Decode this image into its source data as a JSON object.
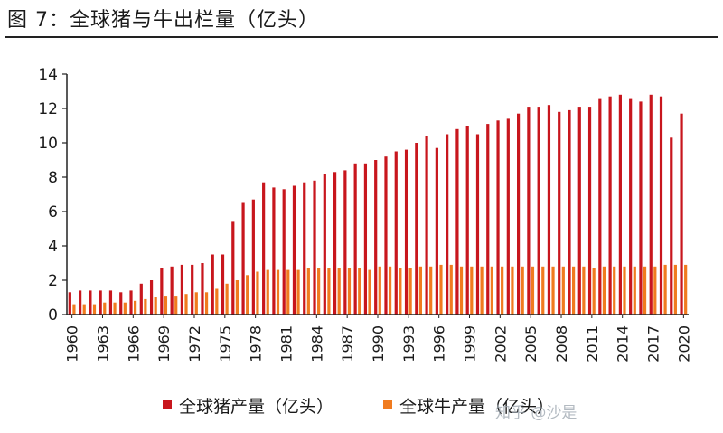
{
  "title": "图 7：全球猪与牛出栏量（亿头）",
  "watermark": "知乎 @沙是",
  "colors": {
    "pig": "#c8161d",
    "cattle": "#f07b1f",
    "axis": "#222222"
  },
  "chart_data": {
    "type": "bar",
    "title": "全球猪与牛出栏量（亿头）",
    "ylim": [
      0,
      14
    ],
    "yticks": [
      0,
      2,
      4,
      6,
      8,
      10,
      12,
      14
    ],
    "grid": false,
    "legend_position": "bottom",
    "categories": [
      1960,
      1961,
      1962,
      1963,
      1964,
      1965,
      1966,
      1967,
      1968,
      1969,
      1970,
      1971,
      1972,
      1973,
      1974,
      1975,
      1976,
      1977,
      1978,
      1979,
      1980,
      1981,
      1982,
      1983,
      1984,
      1985,
      1986,
      1987,
      1988,
      1989,
      1990,
      1991,
      1992,
      1993,
      1994,
      1995,
      1996,
      1997,
      1998,
      1999,
      2000,
      2001,
      2002,
      2003,
      2004,
      2005,
      2006,
      2007,
      2008,
      2009,
      2010,
      2011,
      2012,
      2013,
      2014,
      2015,
      2016,
      2017,
      2018,
      2019,
      2020
    ],
    "xtick_labels": [
      "1960",
      "1963",
      "1966",
      "1969",
      "1972",
      "1975",
      "1978",
      "1981",
      "1984",
      "1987",
      "1990",
      "1993",
      "1996",
      "1999",
      "2002",
      "2005",
      "2008",
      "2011",
      "2014",
      "2017",
      "2020"
    ],
    "series": [
      {
        "name": "全球猪产量（亿头）",
        "color": "#c8161d",
        "values": [
          1.3,
          1.4,
          1.4,
          1.4,
          1.4,
          1.3,
          1.4,
          1.8,
          2.0,
          2.7,
          2.8,
          2.9,
          2.9,
          3.0,
          3.5,
          3.5,
          5.4,
          6.5,
          6.7,
          7.7,
          7.4,
          7.3,
          7.5,
          7.7,
          7.8,
          8.2,
          8.3,
          8.4,
          8.8,
          8.8,
          9.0,
          9.2,
          9.5,
          9.6,
          10.0,
          10.4,
          9.7,
          10.5,
          10.8,
          11.0,
          10.5,
          11.1,
          11.3,
          11.4,
          11.7,
          12.1,
          12.1,
          12.2,
          11.8,
          11.9,
          12.1,
          12.1,
          12.6,
          12.7,
          12.8,
          12.6,
          12.4,
          12.8,
          12.7,
          10.3,
          11.7
        ]
      },
      {
        "name": "全球牛产量（亿头）",
        "color": "#f07b1f",
        "values": [
          0.6,
          0.6,
          0.6,
          0.7,
          0.7,
          0.7,
          0.8,
          0.9,
          1.0,
          1.1,
          1.1,
          1.2,
          1.3,
          1.3,
          1.5,
          1.8,
          2.0,
          2.3,
          2.5,
          2.6,
          2.6,
          2.6,
          2.6,
          2.7,
          2.7,
          2.7,
          2.7,
          2.7,
          2.7,
          2.6,
          2.8,
          2.8,
          2.7,
          2.7,
          2.8,
          2.8,
          2.9,
          2.9,
          2.8,
          2.8,
          2.8,
          2.8,
          2.8,
          2.8,
          2.8,
          2.8,
          2.8,
          2.8,
          2.8,
          2.8,
          2.8,
          2.7,
          2.8,
          2.8,
          2.8,
          2.8,
          2.8,
          2.8,
          2.9,
          2.9,
          2.9
        ]
      }
    ]
  }
}
